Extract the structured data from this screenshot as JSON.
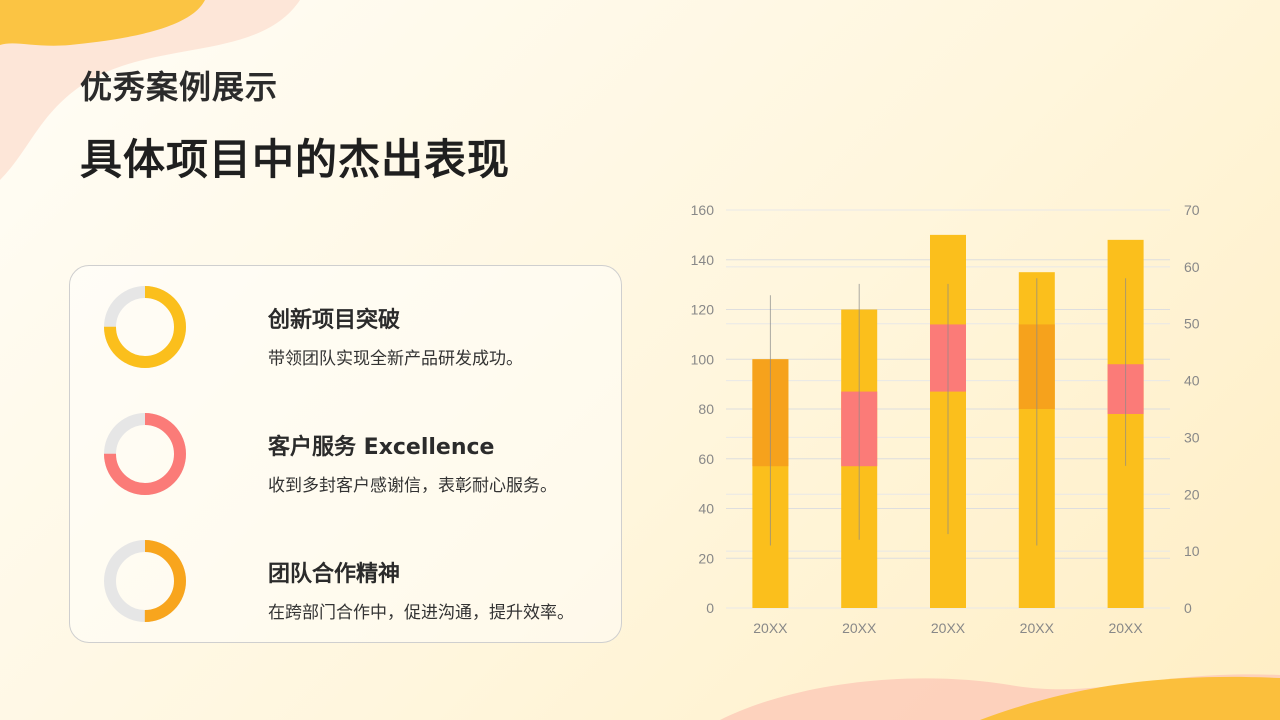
{
  "header": {
    "subtitle": "优秀案例展示",
    "title": "具体项目中的杰出表现"
  },
  "highlights": [
    {
      "title": "创新项目突破",
      "description": "带领团队实现全新产品研发成功。",
      "color": "#fbbf1c",
      "progress": 0.75
    },
    {
      "title": "客户服务 Excellence",
      "description": "收到多封客户感谢信，表彰耐心服务。",
      "color": "#fb7b78",
      "progress": 0.75
    },
    {
      "title": "团队合作精神",
      "description": "在跨部门合作中，促进沟通，提升效率。",
      "color": "#f8a51d",
      "progress": 0.5
    }
  ],
  "chart_data": {
    "type": "bar",
    "categories": [
      "20XX",
      "20XX",
      "20XX",
      "20XX",
      "20XX"
    ],
    "y_left": {
      "min": 0,
      "max": 160,
      "ticks": [
        0,
        20,
        40,
        60,
        80,
        100,
        120,
        140,
        160
      ]
    },
    "y_right": {
      "min": 0,
      "max": 70,
      "ticks": [
        0,
        10,
        20,
        30,
        40,
        50,
        60,
        70
      ]
    },
    "bars": [
      100,
      120,
      150,
      135,
      148
    ],
    "boxes": [
      {
        "low": 57,
        "high": 100,
        "color": "#f6a21c"
      },
      {
        "low": 57,
        "high": 87,
        "color": "#fb7b78"
      },
      {
        "low": 87,
        "high": 114,
        "color": "#fb7b78"
      },
      {
        "low": 80,
        "high": 114,
        "color": "#f6a21c"
      },
      {
        "low": 78,
        "high": 98,
        "color": "#fb7b78"
      }
    ],
    "whiskers_right_axis": [
      {
        "low": 11,
        "high": 55
      },
      {
        "low": 12,
        "high": 57
      },
      {
        "low": 13,
        "high": 57
      },
      {
        "low": 11,
        "high": 58
      },
      {
        "low": 25,
        "high": 58
      }
    ],
    "bar_color": "#fbbf1c",
    "grid": true
  }
}
